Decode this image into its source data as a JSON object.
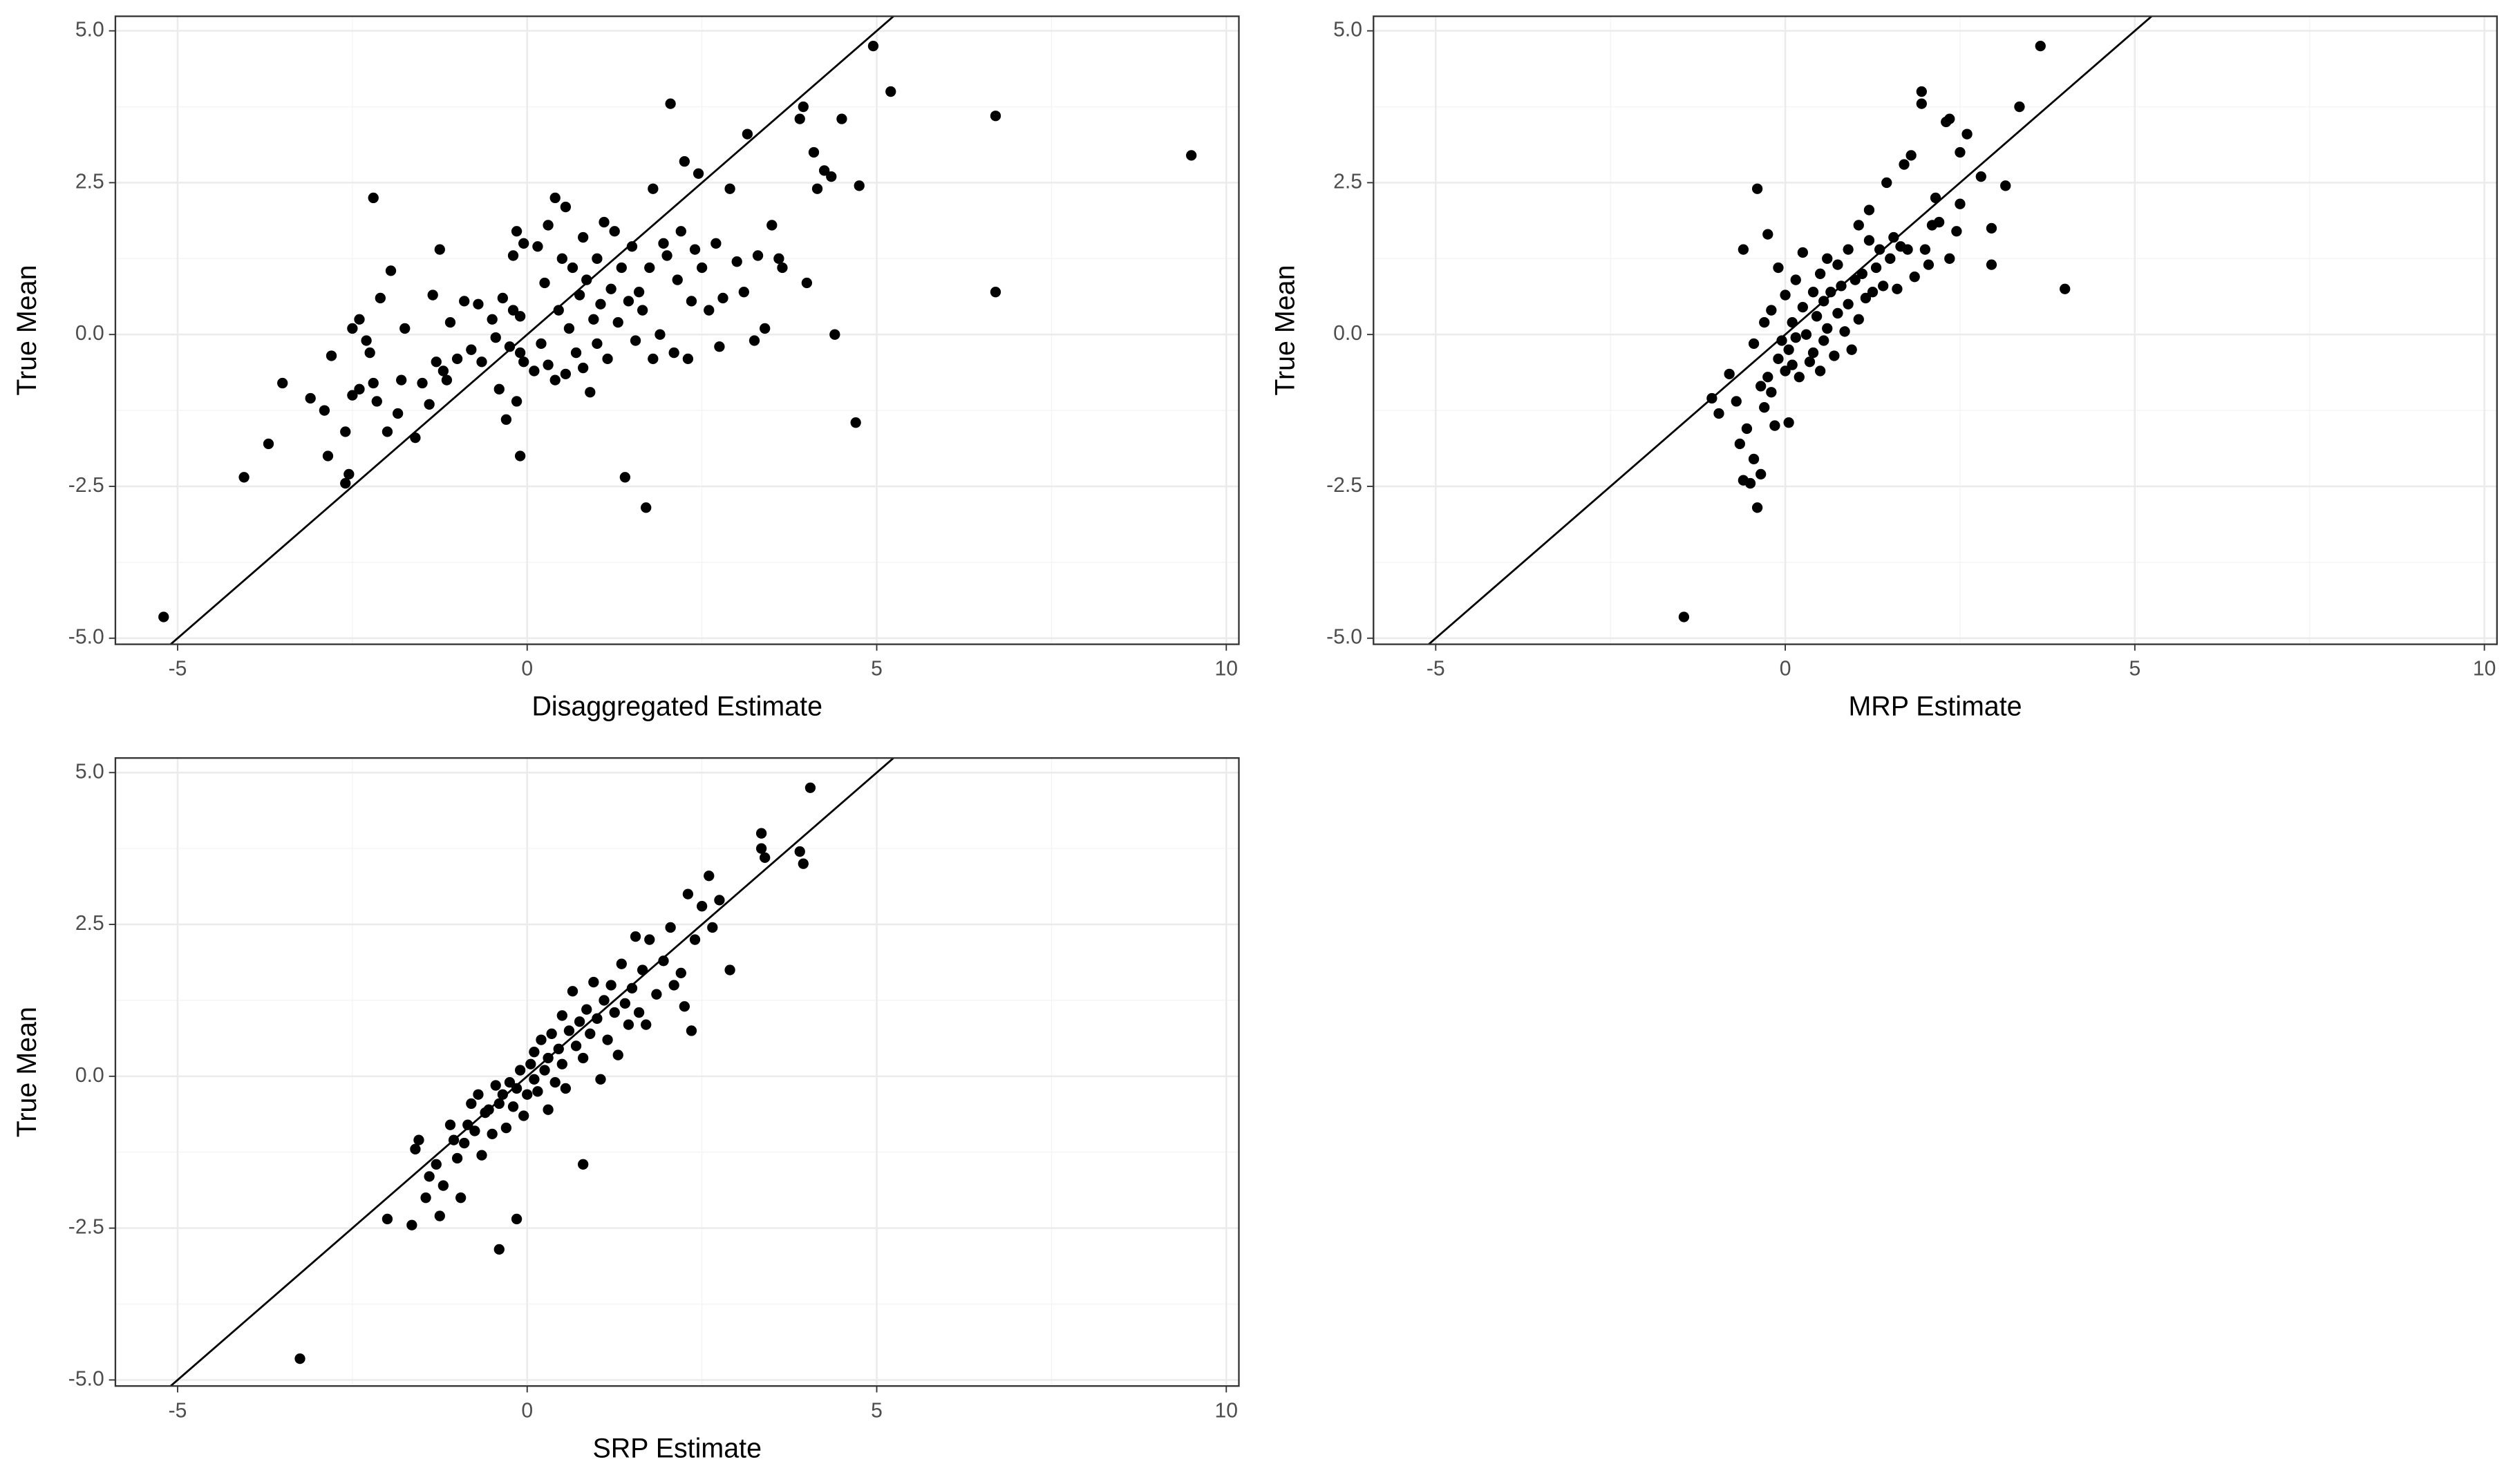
{
  "chart_data": [
    {
      "type": "scatter",
      "x_label": "Disaggregated Estimate",
      "y_label": "True Mean",
      "color": "#000000",
      "grid": true,
      "xlim": [
        -5.89,
        10.18
      ],
      "ylim": [
        -5.1,
        5.24
      ],
      "xticks": [
        -5,
        0,
        5,
        10
      ],
      "yticks": [
        {
          "value": -5,
          "label": "-5.0"
        },
        -2.5,
        {
          "value": 0,
          "label": "0.0"
        },
        2.5,
        {
          "value": 5,
          "label": "5.0"
        }
      ],
      "x": [
        -5.2,
        -4.05,
        -3.7,
        -3.5,
        -3.1,
        -2.9,
        -2.85,
        -2.8,
        -2.6,
        -2.55,
        -2.6,
        -2.5,
        -2.5,
        -2.4,
        -2.4,
        -2.3,
        -2.25,
        -2.2,
        -2.2,
        -2.15,
        -2.1,
        -2.0,
        -1.95,
        -1.85,
        -1.8,
        -1.75,
        -1.6,
        -1.5,
        -1.4,
        -1.35,
        -1.3,
        -1.25,
        -1.2,
        -1.15,
        -1.1,
        -1.0,
        -0.9,
        -0.8,
        -0.7,
        -0.65,
        -0.5,
        -0.45,
        -0.4,
        -0.35,
        -0.3,
        -0.25,
        -0.2,
        -0.2,
        -0.15,
        -0.15,
        -0.1,
        -0.1,
        -0.05,
        -0.05,
        -0.1,
        0.1,
        0.15,
        0.2,
        0.25,
        0.3,
        0.3,
        0.4,
        0.4,
        0.45,
        0.5,
        0.55,
        0.55,
        0.6,
        0.65,
        0.7,
        0.75,
        0.8,
        0.8,
        0.85,
        0.9,
        0.95,
        1.0,
        1.0,
        1.05,
        1.1,
        1.15,
        1.2,
        1.25,
        1.3,
        1.35,
        1.4,
        1.45,
        1.5,
        1.55,
        1.6,
        1.65,
        1.7,
        1.75,
        1.8,
        1.8,
        1.9,
        1.95,
        2.0,
        2.05,
        2.1,
        2.15,
        2.2,
        2.25,
        2.3,
        2.35,
        2.4,
        2.45,
        2.5,
        2.6,
        2.7,
        2.75,
        2.8,
        2.9,
        3.0,
        3.1,
        3.15,
        3.25,
        3.3,
        3.4,
        3.5,
        3.6,
        3.65,
        3.9,
        3.95,
        4.0,
        4.1,
        4.15,
        4.25,
        4.35,
        4.4,
        4.5,
        4.7,
        4.75,
        4.95,
        5.2,
        6.7,
        6.7,
        9.5
      ],
      "y": [
        -4.65,
        -2.35,
        -1.8,
        -0.8,
        -1.05,
        -1.25,
        -2.0,
        -0.35,
        -1.6,
        -2.3,
        -2.45,
        0.1,
        -1.0,
        -0.9,
        0.25,
        -0.1,
        -0.3,
        2.25,
        -0.8,
        -1.1,
        0.6,
        -1.6,
        1.05,
        -1.3,
        -0.75,
        0.1,
        -1.7,
        -0.8,
        -1.15,
        0.65,
        -0.45,
        1.4,
        -0.6,
        -0.75,
        0.2,
        -0.4,
        0.55,
        -0.25,
        0.5,
        -0.45,
        0.25,
        -0.05,
        -0.9,
        0.6,
        -1.4,
        -0.2,
        1.3,
        0.4,
        -1.1,
        1.7,
        -0.3,
        0.3,
        -0.45,
        1.5,
        -2.0,
        -0.6,
        1.45,
        -0.15,
        0.85,
        -0.5,
        1.8,
        2.25,
        -0.75,
        0.4,
        1.25,
        -0.65,
        2.1,
        0.1,
        1.1,
        -0.3,
        0.65,
        -0.55,
        1.6,
        0.9,
        -0.95,
        0.25,
        1.25,
        -0.15,
        0.5,
        1.85,
        -0.4,
        0.75,
        1.7,
        0.2,
        1.1,
        -2.35,
        0.55,
        1.45,
        -0.1,
        0.7,
        0.4,
        -2.85,
        1.1,
        -0.4,
        2.4,
        0.0,
        1.5,
        1.3,
        3.8,
        -0.3,
        0.9,
        1.7,
        2.85,
        -0.4,
        0.55,
        1.4,
        2.65,
        1.1,
        0.4,
        1.5,
        -0.2,
        0.6,
        2.4,
        1.2,
        0.7,
        3.3,
        -0.1,
        1.3,
        0.1,
        1.8,
        1.25,
        1.1,
        3.55,
        3.75,
        0.85,
        3.0,
        2.4,
        2.7,
        2.6,
        0.0,
        3.55,
        -1.45,
        2.45,
        4.75,
        4.0,
        3.6,
        0.7,
        2.95
      ]
    },
    {
      "type": "scatter",
      "x_label": "MRP Estimate",
      "y_label": "True Mean",
      "color": "#000000",
      "grid": true,
      "xlim": [
        -5.89,
        10.18
      ],
      "ylim": [
        -5.1,
        5.24
      ],
      "xticks": [
        -5,
        0,
        5,
        10
      ],
      "yticks": [
        {
          "value": -5,
          "label": "-5.0"
        },
        -2.5,
        {
          "value": 0,
          "label": "0.0"
        },
        2.5,
        {
          "value": 5,
          "label": "5.0"
        }
      ],
      "x": [
        -1.45,
        -1.05,
        -0.95,
        -0.8,
        -0.7,
        -0.65,
        -0.6,
        -0.55,
        -0.5,
        -0.45,
        -0.4,
        -0.6,
        -0.45,
        -0.4,
        -0.35,
        -0.35,
        -0.3,
        -0.3,
        -0.25,
        -0.25,
        -0.2,
        -0.2,
        -0.15,
        -0.1,
        -0.1,
        -0.05,
        0.0,
        0.0,
        0.05,
        0.05,
        0.1,
        0.1,
        0.15,
        0.15,
        0.2,
        0.25,
        0.25,
        0.3,
        0.35,
        0.4,
        0.4,
        0.45,
        0.5,
        0.5,
        0.55,
        0.55,
        0.6,
        0.6,
        0.65,
        0.7,
        0.75,
        0.75,
        0.8,
        0.85,
        0.9,
        0.9,
        0.95,
        1.0,
        1.05,
        1.05,
        1.1,
        1.15,
        1.2,
        1.2,
        1.25,
        1.3,
        1.35,
        1.4,
        1.45,
        1.5,
        1.55,
        1.6,
        1.65,
        1.7,
        1.75,
        1.8,
        1.85,
        1.95,
        1.95,
        2.0,
        2.05,
        2.1,
        2.15,
        2.2,
        2.3,
        2.35,
        2.35,
        2.45,
        2.5,
        2.5,
        2.6,
        2.8,
        2.95,
        2.95,
        3.15,
        3.35,
        3.65,
        4.0
      ],
      "y": [
        -4.65,
        -1.05,
        -1.3,
        -0.65,
        -1.1,
        -1.8,
        -2.4,
        -1.55,
        -2.45,
        -2.05,
        -2.85,
        1.4,
        -0.15,
        2.4,
        -0.85,
        -2.3,
        -1.2,
        0.2,
        -0.7,
        1.65,
        -0.95,
        0.4,
        -1.5,
        1.1,
        -0.4,
        -0.1,
        0.65,
        -0.6,
        -1.45,
        -0.25,
        0.2,
        -0.5,
        0.9,
        -0.05,
        -0.7,
        0.45,
        1.35,
        0.0,
        -0.45,
        0.7,
        -0.3,
        0.3,
        -0.6,
        1.0,
        0.55,
        -0.1,
        0.1,
        1.25,
        0.7,
        -0.35,
        1.15,
        0.35,
        0.8,
        0.05,
        1.4,
        0.5,
        -0.25,
        0.9,
        1.8,
        0.25,
        1.0,
        0.6,
        1.55,
        2.05,
        0.7,
        1.1,
        1.4,
        0.8,
        2.5,
        1.25,
        1.6,
        0.75,
        1.45,
        2.8,
        1.4,
        2.95,
        0.95,
        3.8,
        4.0,
        1.4,
        1.15,
        1.8,
        2.25,
        1.85,
        3.5,
        3.55,
        1.25,
        1.7,
        3.0,
        2.15,
        3.3,
        2.6,
        1.75,
        1.15,
        2.45,
        3.75,
        4.75,
        0.75
      ]
    },
    {
      "type": "scatter",
      "x_label": "SRP Estimate",
      "y_label": "True Mean",
      "color": "#000000",
      "grid": true,
      "xlim": [
        -5.89,
        10.18
      ],
      "ylim": [
        -5.1,
        5.24
      ],
      "xticks": [
        -5,
        0,
        5,
        10
      ],
      "yticks": [
        {
          "value": -5,
          "label": "-5.0"
        },
        -2.5,
        {
          "value": 0,
          "label": "0.0"
        },
        2.5,
        {
          "value": 5,
          "label": "5.0"
        }
      ],
      "x": [
        -3.25,
        -2.0,
        -1.65,
        -1.6,
        -1.55,
        -1.45,
        -1.4,
        -1.3,
        -1.25,
        -1.2,
        -1.1,
        -1.05,
        -1.0,
        -0.95,
        -0.9,
        -0.85,
        -0.8,
        -0.75,
        -0.7,
        -0.65,
        -0.6,
        -0.55,
        -0.5,
        -0.45,
        -0.4,
        -0.4,
        -0.35,
        -0.3,
        -0.25,
        -0.2,
        -0.15,
        -0.15,
        -0.1,
        -0.05,
        0.0,
        0.05,
        0.1,
        0.1,
        0.15,
        0.2,
        0.25,
        0.3,
        0.3,
        0.35,
        0.4,
        0.45,
        0.5,
        0.5,
        0.55,
        0.6,
        0.65,
        0.7,
        0.75,
        0.8,
        0.8,
        0.85,
        0.9,
        0.95,
        1.0,
        1.05,
        1.1,
        1.15,
        1.2,
        1.25,
        1.3,
        1.35,
        1.4,
        1.45,
        1.5,
        1.55,
        1.6,
        1.65,
        1.7,
        1.75,
        1.85,
        1.95,
        2.05,
        2.1,
        2.2,
        2.25,
        2.3,
        2.35,
        2.4,
        2.5,
        2.6,
        2.65,
        2.75,
        2.9,
        3.35,
        3.35,
        3.4,
        3.9,
        3.95,
        4.05
      ],
      "y": [
        -4.65,
        -2.35,
        -2.45,
        -1.2,
        -1.05,
        -2.0,
        -1.65,
        -1.45,
        -2.3,
        -1.8,
        -0.8,
        -1.05,
        -1.35,
        -2.0,
        -1.1,
        -0.8,
        -0.45,
        -0.9,
        -0.3,
        -1.3,
        -0.6,
        -0.55,
        -0.95,
        -0.15,
        -2.85,
        -0.45,
        -0.3,
        -0.85,
        -0.1,
        -0.5,
        -0.2,
        -2.35,
        0.1,
        -0.65,
        -0.3,
        0.2,
        -0.05,
        0.4,
        -0.25,
        0.6,
        0.1,
        -0.55,
        0.3,
        0.7,
        -0.1,
        0.45,
        1.0,
        0.2,
        -0.2,
        0.75,
        1.4,
        0.5,
        0.9,
        -1.45,
        0.3,
        1.1,
        0.7,
        1.55,
        0.95,
        -0.05,
        1.25,
        0.6,
        1.5,
        1.05,
        0.35,
        1.85,
        1.2,
        0.85,
        1.45,
        2.3,
        1.05,
        1.75,
        0.85,
        2.25,
        1.35,
        1.9,
        2.45,
        1.5,
        1.7,
        1.15,
        3.0,
        0.75,
        2.25,
        2.8,
        3.3,
        2.45,
        2.9,
        1.75,
        4.0,
        3.75,
        3.6,
        3.7,
        3.5,
        4.75
      ]
    }
  ]
}
